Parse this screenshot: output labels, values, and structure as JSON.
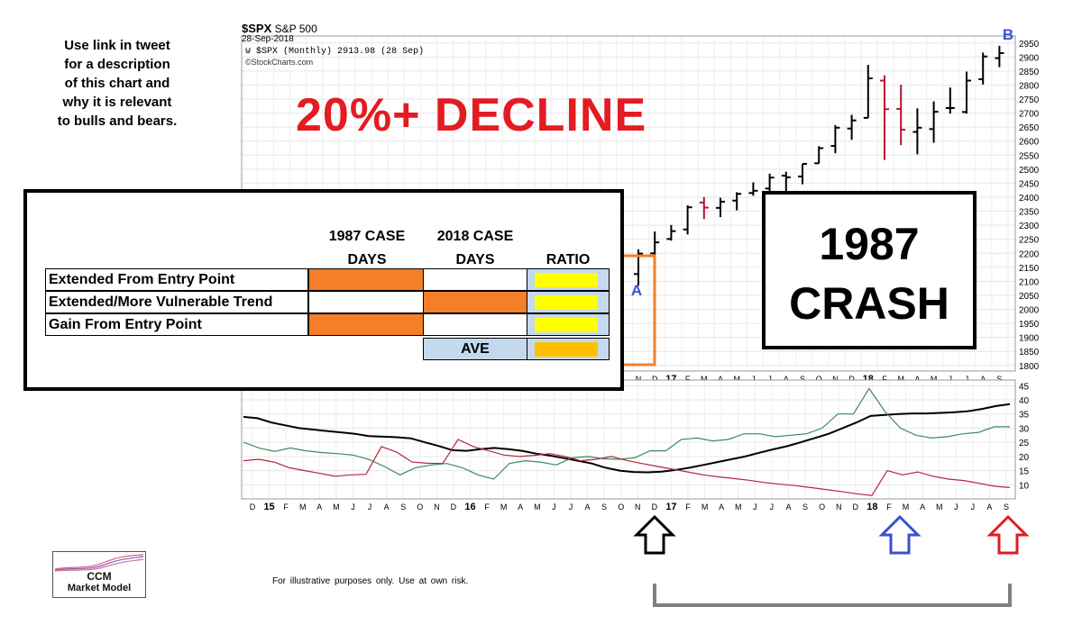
{
  "note": "Use link in tweet\nfor a description\nof this chart and\nwhy it is relevant\nto bulls and bears.",
  "header": {
    "symbol": "$SPX",
    "name": "S&P 500",
    "date": "28-Sep-2018",
    "quote": "$SPX (Monthly) 2913.98 (28 Sep)",
    "credit": "©StockCharts.com"
  },
  "overlay": {
    "decline": "20%+ DECLINE",
    "crash_line1": "1987",
    "crash_line2": "CRASH",
    "label_a": "A",
    "label_b": "B"
  },
  "table": {
    "headers": [
      {
        "line1": "1987 CASE",
        "line2": "DAYS"
      },
      {
        "line1": "2018 CASE",
        "line2": "DAYS"
      },
      {
        "line1": "RATIO",
        "line2": ""
      }
    ],
    "rows": [
      {
        "label": "Extended From Entry Point",
        "c1987": "orange",
        "c2018": "white",
        "ratio": "yellow"
      },
      {
        "label": "Extended/More Vulnerable Trend",
        "c1987": "white",
        "c2018": "orange",
        "ratio": "yellow"
      },
      {
        "label": "Gain From Entry Point",
        "c1987": "orange",
        "c2018": "white",
        "ratio": "yellow"
      }
    ],
    "ave_label": "AVE",
    "colors": {
      "orange": "#f47f28",
      "yellow": "#ffff00",
      "gold": "#ffc000",
      "blue_cell": "#c5d9ee"
    }
  },
  "disclaimer": "For illustrative purposes only.   Use at own risk.",
  "logo": {
    "line1": "CCM",
    "line2": "Market Model"
  },
  "arrows": [
    {
      "color": "#000000",
      "name": "black-arrow"
    },
    {
      "color": "#3a50d0",
      "name": "blue-arrow"
    },
    {
      "color": "#e31b23",
      "name": "red-arrow"
    }
  ],
  "chart_data": {
    "type": "ohlc",
    "price_axis": {
      "ticks": [
        1800,
        1850,
        1900,
        1950,
        2000,
        2050,
        2100,
        2150,
        2200,
        2250,
        2300,
        2350,
        2400,
        2450,
        2500,
        2550,
        2600,
        2650,
        2700,
        2750,
        2800,
        2850,
        2900,
        2950
      ],
      "range": [
        1780,
        2975
      ]
    },
    "month_labels": [
      "N",
      "D",
      "17",
      "F",
      "M",
      "A",
      "M",
      "J",
      "J",
      "A",
      "S",
      "O",
      "N",
      "D",
      "18",
      "F",
      "M",
      "A",
      "M",
      "J",
      "J",
      "A",
      "S"
    ],
    "bars": [
      {
        "open": 2126,
        "high": 2214,
        "low": 2084,
        "close": 2199,
        "color": "black"
      },
      {
        "open": 2200,
        "high": 2278,
        "low": 2187,
        "close": 2239,
        "color": "black"
      },
      {
        "open": 2251,
        "high": 2301,
        "low": 2245,
        "close": 2279,
        "color": "black"
      },
      {
        "open": 2285,
        "high": 2371,
        "low": 2267,
        "close": 2364,
        "color": "black"
      },
      {
        "open": 2381,
        "high": 2401,
        "low": 2322,
        "close": 2363,
        "color": "red"
      },
      {
        "open": 2362,
        "high": 2398,
        "low": 2329,
        "close": 2384,
        "color": "black"
      },
      {
        "open": 2388,
        "high": 2418,
        "low": 2353,
        "close": 2412,
        "color": "black"
      },
      {
        "open": 2415,
        "high": 2453,
        "low": 2405,
        "close": 2423,
        "color": "black"
      },
      {
        "open": 2431,
        "high": 2484,
        "low": 2407,
        "close": 2470,
        "color": "black"
      },
      {
        "open": 2477,
        "high": 2491,
        "low": 2417,
        "close": 2471,
        "color": "black"
      },
      {
        "open": 2474,
        "high": 2519,
        "low": 2446,
        "close": 2519,
        "color": "black"
      },
      {
        "open": 2521,
        "high": 2582,
        "low": 2520,
        "close": 2575,
        "color": "black"
      },
      {
        "open": 2583,
        "high": 2657,
        "low": 2557,
        "close": 2648,
        "color": "black"
      },
      {
        "open": 2645,
        "high": 2694,
        "low": 2605,
        "close": 2674,
        "color": "black"
      },
      {
        "open": 2683,
        "high": 2872,
        "low": 2683,
        "close": 2824,
        "color": "black"
      },
      {
        "open": 2816,
        "high": 2835,
        "low": 2533,
        "close": 2714,
        "color": "red"
      },
      {
        "open": 2715,
        "high": 2801,
        "low": 2586,
        "close": 2641,
        "color": "red"
      },
      {
        "open": 2633,
        "high": 2717,
        "low": 2553,
        "close": 2648,
        "color": "black"
      },
      {
        "open": 2643,
        "high": 2742,
        "low": 2594,
        "close": 2705,
        "color": "black"
      },
      {
        "open": 2718,
        "high": 2791,
        "low": 2698,
        "close": 2718,
        "color": "black"
      },
      {
        "open": 2704,
        "high": 2848,
        "low": 2698,
        "close": 2816,
        "color": "black"
      },
      {
        "open": 2821,
        "high": 2916,
        "low": 2802,
        "close": 2902,
        "color": "black"
      },
      {
        "open": 2896,
        "high": 2940,
        "low": 2864,
        "close": 2914,
        "color": "black"
      }
    ],
    "indicator": {
      "axis_ticks": [
        10,
        15,
        20,
        25,
        30,
        35,
        40,
        45
      ],
      "range": [
        5,
        47
      ],
      "x_labels": [
        "D",
        "15",
        "F",
        "M",
        "A",
        "M",
        "J",
        "J",
        "A",
        "S",
        "O",
        "N",
        "D",
        "16",
        "F",
        "M",
        "A",
        "M",
        "J",
        "J",
        "A",
        "S",
        "O",
        "N",
        "D",
        "17",
        "F",
        "M",
        "A",
        "M",
        "J",
        "J",
        "A",
        "S",
        "O",
        "N",
        "D",
        "18",
        "F",
        "M",
        "A",
        "M",
        "J",
        "J",
        "A",
        "S"
      ],
      "series": [
        {
          "color": "#000000",
          "values": [
            34,
            33.5,
            32,
            31,
            30,
            29.5,
            29,
            28.5,
            28,
            27.2,
            27,
            26.8,
            26.4,
            25,
            23.7,
            22.2,
            22,
            22.6,
            23,
            22.6,
            22,
            21,
            20.3,
            19.4,
            18.5,
            17.5,
            16,
            15,
            14.5,
            14.4,
            14.6,
            15.2,
            16,
            17,
            18,
            19,
            20,
            21.3,
            22.5,
            23.6,
            25,
            26.5,
            28,
            30,
            32,
            34.3,
            34.7,
            35,
            35.2,
            35.2,
            35.4,
            35.6,
            36,
            36.8,
            37.8,
            38.5
          ]
        },
        {
          "color": "#3f8a5e",
          "values": [
            25,
            23,
            21.8,
            23,
            22,
            21.4,
            21,
            20.5,
            19,
            16.5,
            13.5,
            16,
            17,
            17.5,
            16,
            13.5,
            12,
            17.5,
            18.5,
            18,
            17,
            19.5,
            20,
            19.2,
            19,
            19.5,
            22,
            22,
            26,
            26.5,
            25.5,
            26,
            28,
            28,
            27,
            27.5,
            28,
            30,
            35,
            35,
            44,
            36,
            30,
            27.5,
            26.5,
            27,
            28,
            28.5,
            30.5,
            30.5
          ]
        },
        {
          "color": "#b3263f",
          "values": [
            18.5,
            19,
            18,
            16,
            15,
            14,
            13,
            13.5,
            13.7,
            23.5,
            21.5,
            18,
            17.6,
            17.5,
            26,
            23.5,
            22,
            20.5,
            20,
            20.4,
            21,
            20,
            18.5,
            19,
            20,
            18.6,
            17.5,
            16.5,
            15.5,
            14.5,
            13.5,
            12.8,
            12.2,
            11.6,
            10.8,
            10.2,
            9.7,
            9,
            8.3,
            7.6,
            6.8,
            6.2,
            15,
            13.5,
            14.5,
            13,
            12,
            11.5,
            10.5,
            9.5,
            9
          ]
        }
      ]
    }
  }
}
